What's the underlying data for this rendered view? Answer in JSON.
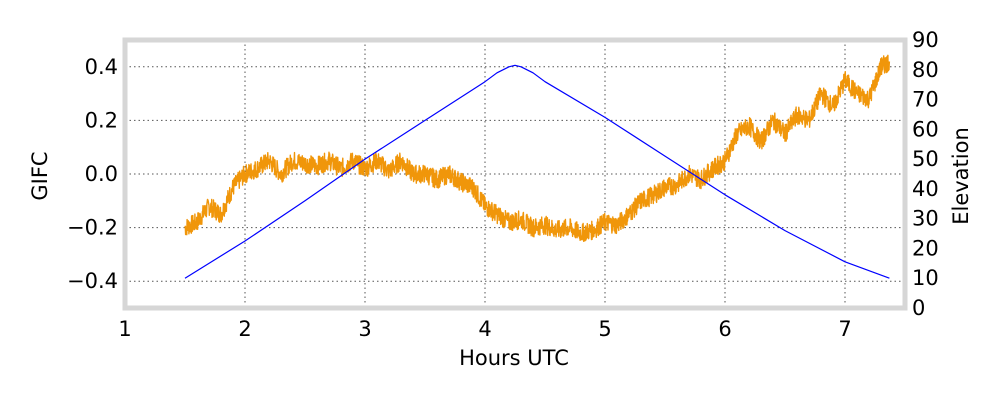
{
  "chart_data": {
    "type": "line",
    "xlabel": "Hours UTC",
    "ylabel": "GIFC",
    "y2label": "Elevation",
    "xlim": [
      1,
      7.5
    ],
    "ylim": [
      -0.5,
      0.5
    ],
    "y2lim": [
      0,
      90
    ],
    "xticks": [
      1,
      2,
      3,
      4,
      5,
      6,
      7
    ],
    "yticks": [
      -0.4,
      -0.2,
      0.0,
      0.2,
      0.4
    ],
    "ytick_labels": [
      "−0.4",
      "−0.2",
      "0.0",
      "0.2",
      "0.4"
    ],
    "y2ticks": [
      0,
      10,
      20,
      30,
      40,
      50,
      60,
      70,
      80,
      90
    ],
    "grid": true,
    "colors": {
      "gifc": "#f0960a",
      "elevation": "#0000ff",
      "frame": "#d6d6d6"
    },
    "series": [
      {
        "axis": "left",
        "color": "#f0960a",
        "x": [
          1.5,
          1.6,
          1.7,
          1.8,
          1.9,
          2.0,
          2.1,
          2.2,
          2.3,
          2.4,
          2.5,
          2.6,
          2.7,
          2.8,
          2.9,
          3.0,
          3.1,
          3.2,
          3.3,
          3.4,
          3.5,
          3.6,
          3.7,
          3.8,
          3.9,
          4.0,
          4.1,
          4.2,
          4.3,
          4.4,
          4.5,
          4.6,
          4.7,
          4.8,
          4.9,
          5.0,
          5.1,
          5.2,
          5.3,
          5.4,
          5.5,
          5.6,
          5.7,
          5.8,
          5.9,
          6.0,
          6.1,
          6.2,
          6.3,
          6.4,
          6.5,
          6.6,
          6.7,
          6.8,
          6.9,
          7.0,
          7.1,
          7.2,
          7.3,
          7.37
        ],
        "y": [
          -0.2,
          -0.18,
          -0.12,
          -0.15,
          -0.05,
          0.0,
          0.02,
          0.05,
          0.0,
          0.05,
          0.04,
          0.03,
          0.05,
          0.02,
          0.05,
          0.02,
          0.05,
          0.01,
          0.05,
          0.0,
          0.0,
          -0.02,
          0.0,
          -0.03,
          -0.05,
          -0.12,
          -0.15,
          -0.18,
          -0.17,
          -0.2,
          -0.19,
          -0.21,
          -0.2,
          -0.22,
          -0.21,
          -0.18,
          -0.19,
          -0.15,
          -0.1,
          -0.08,
          -0.05,
          -0.04,
          0.0,
          -0.02,
          0.02,
          0.05,
          0.15,
          0.18,
          0.12,
          0.2,
          0.15,
          0.22,
          0.2,
          0.3,
          0.25,
          0.35,
          0.3,
          0.28,
          0.4,
          0.42
        ]
      },
      {
        "axis": "right",
        "color": "#0000ff",
        "x": [
          1.5,
          2.0,
          2.5,
          3.0,
          3.5,
          4.0,
          4.1,
          4.2,
          4.25,
          4.3,
          4.4,
          4.5,
          5.0,
          5.5,
          6.0,
          6.5,
          7.0,
          7.37
        ],
        "y": [
          10,
          22.5,
          36,
          50,
          63,
          76,
          79,
          81,
          81.5,
          81,
          79,
          76,
          64,
          51,
          38,
          26,
          15.5,
          10
        ]
      }
    ]
  }
}
